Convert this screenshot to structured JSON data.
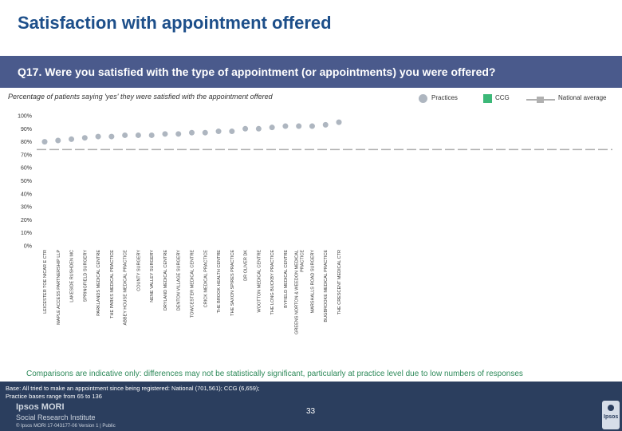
{
  "page": {
    "title": "Satisfaction with appointment offered",
    "question": "Q17. Were you satisfied with the type of appointment (or appointments) you were offered?",
    "subtitle": "Percentage of patients saying 'yes' they were satisfied with the appointment offered",
    "note": "Comparisons are indicative only: differences may not be statistically significant, particularly at practice level due to low numbers of responses",
    "base_line1": "Base: All tried to make an appointment since being registered: National (701,561); CCG (6,659);",
    "base_line2": "Practice bases range from 65 to 136",
    "brand_line1": "Ipsos MORI",
    "brand_line2": "Social Research Institute",
    "footer_left": "© Ipsos MORI     17-043177-06 Version 1 | Public",
    "page_number": "33",
    "logo_text": "Ipsos"
  },
  "legend": {
    "practices": "Practices",
    "ccg": "CCG",
    "national": "National average"
  },
  "colors": {
    "title": "#1d4f8a",
    "question_bar": "#4a5a8c",
    "practice_dot": "#aeb6c0",
    "ccg": "#3cb878",
    "national_line": "#b0b0b0",
    "footer": "#2b3e5e"
  },
  "chart_data": {
    "type": "scatter",
    "title": "Percentage of patients saying 'yes' they were satisfied with the appointment offered",
    "ylim": [
      0,
      100
    ],
    "y_ticks": [
      "0%",
      "10%",
      "20%",
      "30%",
      "40%",
      "50%",
      "60%",
      "70%",
      "80%",
      "90%",
      "100%"
    ],
    "categories": [
      "LEICESTER TOE NICAR E CTR",
      "MAPLE ACCESS PARTNERSHIP LLP",
      "LAKESIDE RUSHDEN MC",
      "SPRINGFIELD SURGERY",
      "PARKLANDS MEDICAL CENTRE",
      "THE PARKS MEDICAL PRACTICE",
      "ABBEY HOUSE MEDICAL PRACTICE",
      "COUNTY SURGERY",
      "NENE VALLEY SURGERY",
      "DRYLAND MEDICAL CENTRE",
      "DENTON VILLAGE SURGERY",
      "TOWCESTER MEDICAL CENTRE",
      "CRICK MEDICAL PRACTICE",
      "THE BROOK HEALTH CENTRE",
      "THE SAXON SPIRES PRACTICE",
      "DR OLIVER DK",
      "WOOTTON MEDICAL CENTRE",
      "THE LONG BUCKBY PRACTICE",
      "BYFIELD MEDICAL CENTRE",
      "GREENS NORTON & WEEDON MEDICAL PRACTICE",
      "MARSHALLS ROAD SURGERY",
      "BUGBROOKE MEDICAL PRACTICE",
      "THE CRESCENT MEDICAL CTR"
    ],
    "values": [
      80,
      81,
      82,
      83,
      84,
      84,
      85,
      85,
      85,
      86,
      86,
      87,
      87,
      88,
      88,
      90,
      90,
      91,
      92,
      92,
      92,
      93,
      95
    ],
    "national_average": 74,
    "ccg": null
  }
}
